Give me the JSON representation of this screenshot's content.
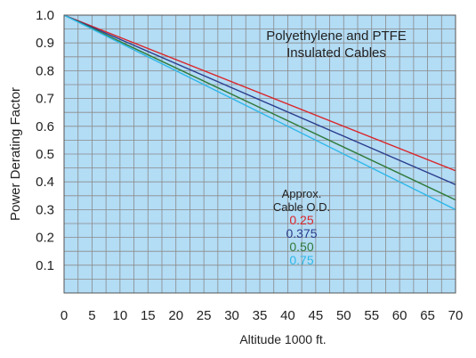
{
  "chart_data": {
    "type": "line",
    "title_lines": [
      "Polyethylene and PTFE",
      "Insulated Cables"
    ],
    "xlabel": "Altitude 1000 ft.",
    "ylabel": "Power Derating Factor",
    "xlim": [
      0,
      70
    ],
    "ylim": [
      0,
      1.0
    ],
    "x_ticks": [
      "0",
      "5",
      "10",
      "15",
      "20",
      "25",
      "30",
      "35",
      "40",
      "45",
      "50",
      "55",
      "60",
      "65",
      "70"
    ],
    "y_ticks": [
      "0.1",
      "0.2",
      "0.3",
      "0.4",
      "0.5",
      "0.6",
      "0.7",
      "0.8",
      "0.9",
      "1.0"
    ],
    "grid": true,
    "plot_background": "#b3dcf5",
    "legend_title_lines": [
      "Approx.",
      "Cable O.D."
    ],
    "series": [
      {
        "name": "0.25",
        "color": "#d9262a",
        "x": [
          0,
          70
        ],
        "y": [
          1.0,
          0.44
        ]
      },
      {
        "name": "0.375",
        "color": "#2a3c8c",
        "x": [
          0,
          70
        ],
        "y": [
          1.0,
          0.39
        ]
      },
      {
        "name": "0.50",
        "color": "#2f7a3a",
        "x": [
          0,
          70
        ],
        "y": [
          1.0,
          0.335
        ]
      },
      {
        "name": "0.75",
        "color": "#2fb8e8",
        "x": [
          0,
          70
        ],
        "y": [
          1.0,
          0.3
        ]
      }
    ]
  }
}
